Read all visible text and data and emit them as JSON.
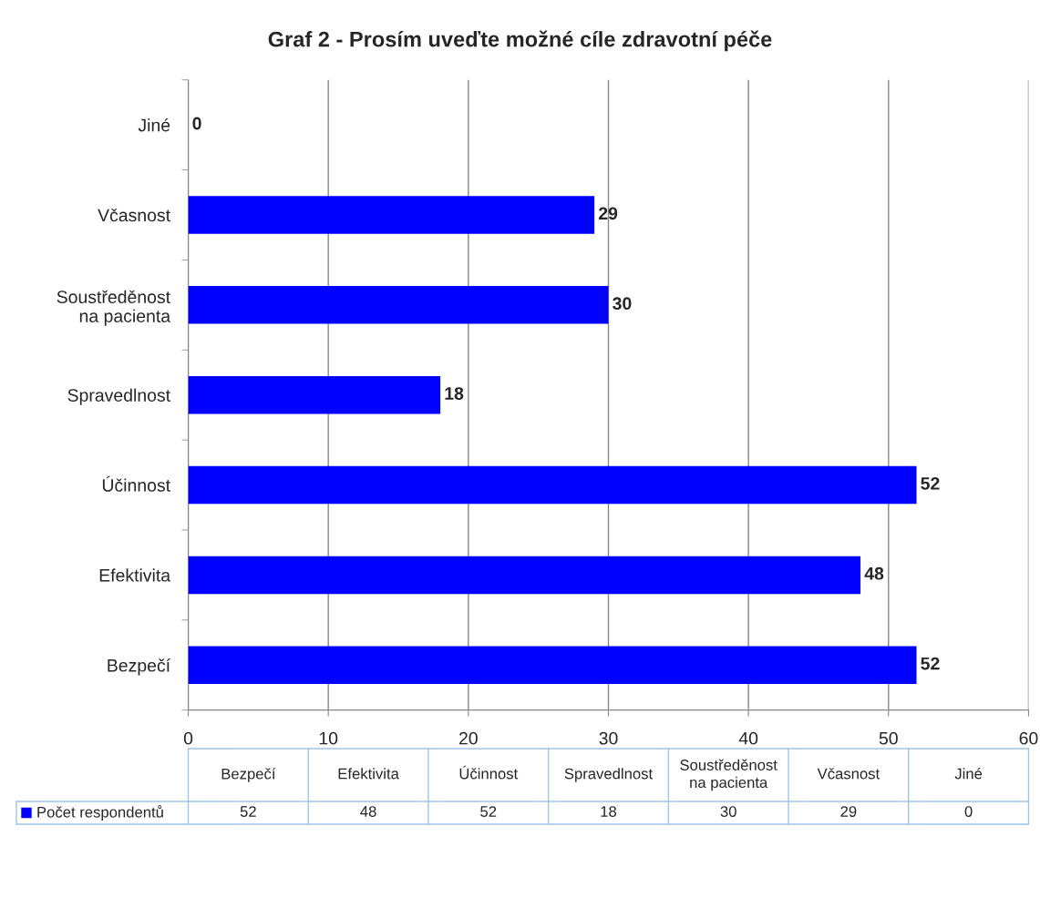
{
  "chart_data": {
    "type": "bar",
    "orientation": "horizontal",
    "title": "Graf 2 - Prosím uveďte možné cíle zdravotní péče",
    "categories": [
      "Jiné",
      "Včasnost",
      "Soustředěnost na pacienta",
      "Spravedlnost",
      "Účinnost",
      "Efektivita",
      "Bezpečí"
    ],
    "series": [
      {
        "name": "Počet respondentů",
        "color": "#0000ff",
        "values": [
          0,
          29,
          30,
          18,
          52,
          48,
          52
        ]
      }
    ],
    "annotations": [
      "52",
      "48",
      "52",
      "18",
      "30",
      "29",
      "0"
    ],
    "xlim": [
      0,
      60
    ],
    "xticks": [
      0,
      10,
      20,
      30,
      40,
      50,
      60
    ],
    "grid": "x",
    "data_labels": true,
    "legend": "bottom"
  }
}
